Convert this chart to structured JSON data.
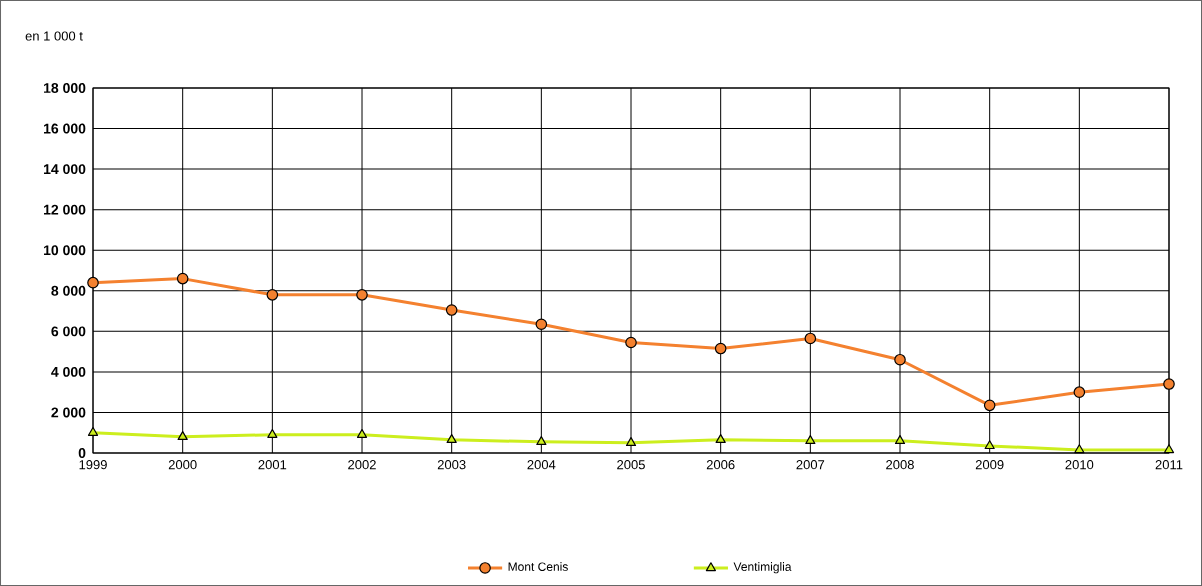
{
  "chart_data": {
    "type": "line",
    "ylabel": "en 1 000 t",
    "x": [
      1999,
      2000,
      2001,
      2002,
      2003,
      2004,
      2005,
      2006,
      2007,
      2008,
      2009,
      2010,
      2011
    ],
    "series": [
      {
        "name": "Mont Cenis",
        "color": "#f4812f",
        "marker": "circle",
        "values": [
          8400,
          8600,
          7800,
          7800,
          7050,
          6350,
          5450,
          5150,
          5650,
          4600,
          2350,
          3000,
          3400
        ]
      },
      {
        "name": "Ventimiglia",
        "color": "#ccee1e",
        "marker": "triangle",
        "values": [
          1000,
          800,
          900,
          900,
          650,
          550,
          500,
          650,
          600,
          600,
          350,
          150,
          150
        ]
      }
    ],
    "xlim": [
      1999,
      2011
    ],
    "xticks": [
      1999,
      2000,
      2001,
      2002,
      2003,
      2004,
      2005,
      2006,
      2007,
      2008,
      2009,
      2010,
      2011
    ],
    "ylim": [
      0,
      18000
    ],
    "yticks": [
      0,
      {
        "value": 2000,
        "label": "2 000"
      },
      {
        "value": 4000,
        "label": "4 000"
      },
      {
        "value": 6000,
        "label": "6 000"
      },
      {
        "value": 8000,
        "label": "8 000"
      },
      {
        "value": 10000,
        "label": "10 000"
      },
      {
        "value": 12000,
        "label": "12 000"
      },
      {
        "value": 14000,
        "label": "14 000"
      },
      {
        "value": 16000,
        "label": "16 000"
      },
      {
        "value": 18000,
        "label": "18 000"
      }
    ],
    "grid": true,
    "legend": "bottom"
  }
}
